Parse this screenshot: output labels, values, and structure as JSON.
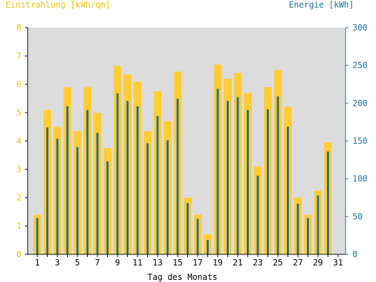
{
  "header": {
    "left_title": "Einstrahlung [kWh/qm]",
    "right_title": "Energie [kWh]"
  },
  "colors": {
    "background": "#ffffff",
    "plot_area": "#dcdcdc",
    "irradiation_bar": "#ffcc33",
    "energy_bar": "#1a6f9a",
    "left_axis_label": "#f5c000",
    "right_axis_label": "#1a6f9a",
    "axis_line": "#000000",
    "right_axis_line": "#1a6f9a"
  },
  "chart_data": {
    "type": "bar",
    "title": "",
    "xlabel": "Tag des Monats",
    "ylabel_left": "Einstrahlung [kWh/qm]",
    "ylabel_right": "Energie [kWh]",
    "ylim_left": [
      0,
      8
    ],
    "ylim_right": [
      0,
      300
    ],
    "yticks_left": [
      "0",
      "1",
      "2",
      "3",
      "4",
      "5",
      "6",
      "7",
      "8"
    ],
    "yticks_right": [
      "0",
      "50",
      "100",
      "150",
      "200",
      "250",
      "300"
    ],
    "xtick_labels": [
      "1",
      "3",
      "5",
      "7",
      "9",
      "11",
      "13",
      "15",
      "17",
      "19",
      "21",
      "23",
      "25",
      "27",
      "29",
      "31"
    ],
    "categories": [
      1,
      2,
      3,
      4,
      5,
      6,
      7,
      8,
      9,
      10,
      11,
      12,
      13,
      14,
      15,
      16,
      17,
      18,
      19,
      20,
      21,
      22,
      23,
      24,
      25,
      26,
      27,
      28,
      29,
      30
    ],
    "grid": false,
    "series": [
      {
        "name": "Einstrahlung [kWh/qm]",
        "axis": "left",
        "values": [
          1.4,
          5.1,
          4.5,
          5.9,
          4.35,
          5.9,
          5.0,
          3.75,
          6.65,
          6.35,
          6.1,
          4.35,
          5.75,
          4.7,
          6.45,
          2.0,
          1.4,
          0.7,
          6.7,
          6.2,
          6.4,
          5.7,
          3.1,
          5.9,
          6.5,
          5.2,
          2.0,
          1.4,
          2.25,
          3.95
        ]
      },
      {
        "name": "Energie [kWh]",
        "axis": "right",
        "values": [
          48,
          168,
          153,
          196,
          142,
          191,
          161,
          123,
          213,
          203,
          196,
          147,
          183,
          151,
          206,
          68,
          47,
          19,
          219,
          203,
          208,
          191,
          104,
          192,
          209,
          169,
          67,
          48,
          78,
          136
        ]
      }
    ]
  }
}
